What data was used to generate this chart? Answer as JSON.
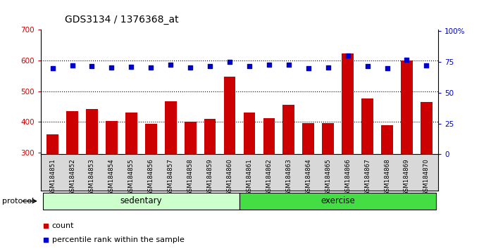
{
  "title": "GDS3134 / 1376368_at",
  "samples": [
    "GSM184851",
    "GSM184852",
    "GSM184853",
    "GSM184854",
    "GSM184855",
    "GSM184856",
    "GSM184857",
    "GSM184858",
    "GSM184859",
    "GSM184860",
    "GSM184861",
    "GSM184862",
    "GSM184863",
    "GSM184864",
    "GSM184865",
    "GSM184866",
    "GSM184867",
    "GSM184868",
    "GSM184869",
    "GSM184870"
  ],
  "bar_values": [
    360,
    435,
    443,
    403,
    430,
    393,
    468,
    400,
    410,
    547,
    430,
    412,
    456,
    395,
    397,
    622,
    477,
    390,
    600,
    466
  ],
  "percentile_values": [
    70,
    72,
    71.5,
    70.5,
    71,
    70.5,
    73,
    70.5,
    71.5,
    75,
    71.5,
    73,
    72.5,
    70,
    70.5,
    80,
    71.5,
    70,
    77,
    72
  ],
  "groups": [
    {
      "label": "sedentary",
      "start": 0,
      "end": 10,
      "color": "#ccffcc"
    },
    {
      "label": "exercise",
      "start": 10,
      "end": 20,
      "color": "#44dd44"
    }
  ],
  "bar_color": "#cc0000",
  "dot_color": "#0000cc",
  "ylim_left": [
    290,
    700
  ],
  "ylim_right": [
    -1,
    101
  ],
  "yticks_left": [
    300,
    400,
    500,
    600,
    700
  ],
  "yticks_right": [
    0,
    25,
    50,
    75,
    100
  ],
  "grid_values": [
    400,
    500,
    600
  ],
  "background_color": "#ffffff",
  "legend": [
    {
      "label": "count",
      "color": "#cc0000"
    },
    {
      "label": "percentile rank within the sample",
      "color": "#0000cc"
    }
  ]
}
